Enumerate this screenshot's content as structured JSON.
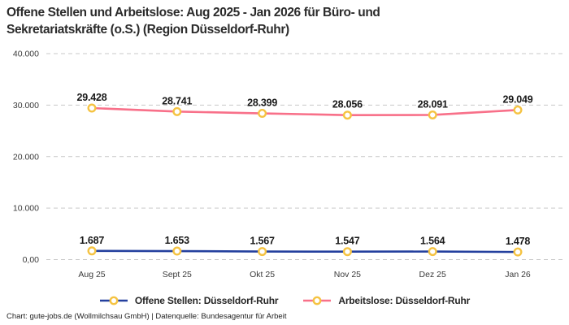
{
  "title": {
    "lines": [
      "Offene Stellen und Arbeitslose: Aug 2025 - Jan 2026 für Büro- und",
      "Sekretariatskräfte (o.S.) (Region Düsseldorf-Ruhr)"
    ]
  },
  "footer": {
    "credit": "Chart: gute-jobs.de (Wollmilchsau GmbH) | Datenquelle: Bundesagentur für Arbeit"
  },
  "chart_data": {
    "type": "line",
    "title": "Offene Stellen und Arbeitslose: Aug 2025 - Jan 2026 für Büro- und Sekretariatskräfte (o.S.) (Region Düsseldorf-Ruhr)",
    "categories": [
      "Aug 25",
      "Sept 25",
      "Okt 25",
      "Nov 25",
      "Dez 25",
      "Jan 26"
    ],
    "series": [
      {
        "name": "Offene Stellen: Düsseldorf-Ruhr",
        "values": [
          1687,
          1653,
          1567,
          1547,
          1564,
          1478
        ],
        "labels": [
          "1.687",
          "1.653",
          "1.567",
          "1.547",
          "1.564",
          "1.478"
        ],
        "color": "#24409e"
      },
      {
        "name": "Arbeitslose: Düsseldorf-Ruhr",
        "values": [
          29428,
          28741,
          28399,
          28056,
          28091,
          29049
        ],
        "labels": [
          "29.428",
          "28.741",
          "28.399",
          "28.056",
          "28.091",
          "29.049"
        ],
        "color": "#f87089"
      }
    ],
    "marker": {
      "shape": "circle",
      "fill": "#ffffff",
      "stroke": "#f5c342"
    },
    "y_axis": {
      "range": [
        0,
        40000
      ],
      "ticks": [
        0,
        10000,
        20000,
        30000,
        40000
      ],
      "tick_labels": [
        "0,00",
        "10.000",
        "20.000",
        "30.000",
        "40.000"
      ]
    },
    "grid": "horizontal-dashed",
    "legend_position": "bottom"
  }
}
